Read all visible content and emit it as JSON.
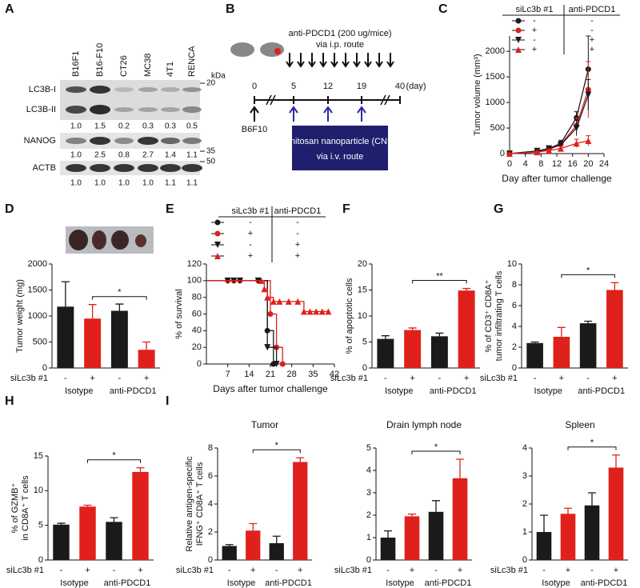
{
  "blot": {
    "panel": "A",
    "lanes": [
      "B16F1",
      "B16-F10",
      "CT26",
      "MC38",
      "4T1",
      "RENCA"
    ],
    "unit": "kDa",
    "markers": [
      20,
      35,
      50
    ],
    "rows": [
      {
        "labels": [
          "LC3B-I",
          "LC3B-II"
        ],
        "quant": [
          "1.0",
          "1.5",
          "0.2",
          "0.3",
          "0.3",
          "0.5"
        ]
      },
      {
        "labels": [
          "NANOG"
        ],
        "quant": [
          "1.0",
          "2.5",
          "0.8",
          "2.7",
          "1.4",
          "1.1"
        ]
      },
      {
        "labels": [
          "ACTB"
        ],
        "quant": [
          "1.0",
          "1.0",
          "1.0",
          "1.0",
          "1.1",
          "1.1"
        ]
      }
    ]
  },
  "schematic": {
    "panel": "B",
    "treatment": "anti-PDCD1 (200 ug/mice)",
    "treatment_route": "via i.p. route",
    "days": [
      "0",
      "5",
      "12",
      "19",
      "40"
    ],
    "day_unit": "(day)",
    "cell_line": "B6F10",
    "nanoparticle": "Chitosan nanoparticle (CNP)",
    "nanoparticle_route": "via i.v. route"
  },
  "chart_data": [
    {
      "type": "line",
      "panel": "C",
      "xlabel": "Day after tumor challenge",
      "ylabel": [
        "Tumor volume (mm³)"
      ],
      "xlim": [
        0,
        24
      ],
      "xticks": [
        0,
        4,
        8,
        12,
        16,
        20,
        24
      ],
      "ylim": [
        0,
        2300
      ],
      "yticks": [
        0,
        500,
        1000,
        1500,
        2000
      ],
      "legend": {
        "columns": [
          "siLc3b #1",
          "anti-PDCD1"
        ],
        "rows": [
          [
            "-",
            "-"
          ],
          [
            "+",
            "-"
          ],
          [
            "-",
            "+"
          ],
          [
            "+",
            "+"
          ]
        ]
      },
      "series": [
        {
          "color": "#1a1a1a",
          "marker": "circle",
          "x": [
            0,
            7,
            10,
            13,
            17,
            20
          ],
          "values": [
            0,
            50,
            100,
            200,
            700,
            1650
          ],
          "errors": [
            0,
            20,
            30,
            60,
            120,
            650
          ]
        },
        {
          "color": "#e0201b",
          "marker": "circle",
          "x": [
            0,
            7,
            10,
            13,
            17,
            20
          ],
          "values": [
            0,
            40,
            80,
            180,
            550,
            1250
          ],
          "errors": [
            0,
            20,
            30,
            50,
            150,
            550
          ]
        },
        {
          "color": "#1a1a1a",
          "marker": "triangle-down",
          "x": [
            0,
            7,
            10,
            13,
            17,
            20
          ],
          "values": [
            0,
            50,
            100,
            170,
            500,
            1150
          ],
          "errors": [
            0,
            20,
            30,
            60,
            150,
            300
          ]
        },
        {
          "color": "#e0201b",
          "marker": "triangle-up",
          "x": [
            0,
            7,
            10,
            13,
            17,
            20
          ],
          "values": [
            0,
            30,
            60,
            100,
            200,
            250
          ],
          "errors": [
            0,
            10,
            20,
            40,
            80,
            100
          ]
        }
      ]
    },
    {
      "type": "bar",
      "panel": "D",
      "ylabel": [
        "Tumor weight (mg)"
      ],
      "values": [
        1180,
        950,
        1100,
        350
      ],
      "errors": [
        480,
        270,
        130,
        150
      ],
      "colors": [
        "#1a1a1a",
        "#e0201b",
        "#1a1a1a",
        "#e0201b"
      ],
      "ylim": [
        0,
        2000
      ],
      "yticks": [
        0,
        500,
        1000,
        1500,
        2000
      ],
      "sign_label": "siLc3b #1",
      "signs": [
        "-",
        "+",
        "-",
        "+"
      ],
      "groups": [
        "Isotype",
        "anti-PDCD1"
      ],
      "significance": "*"
    },
    {
      "type": "step",
      "panel": "E",
      "xlabel": "Days after tumor challenge",
      "ylabel": [
        "% of survival"
      ],
      "xlim": [
        0,
        42
      ],
      "xticks": [
        7,
        14,
        21,
        28,
        35,
        42
      ],
      "ylim": [
        0,
        120
      ],
      "yticks": [
        0,
        20,
        40,
        60,
        80,
        100,
        120
      ],
      "legend": {
        "columns": [
          "siLc3b #1",
          "anti-PDCD1"
        ],
        "rows": [
          [
            "-",
            "-"
          ],
          [
            "+",
            "-"
          ],
          [
            "-",
            "+"
          ],
          [
            "+",
            "+"
          ]
        ]
      },
      "series": [
        {
          "color": "#1a1a1a",
          "marker": "circle",
          "x": [
            0,
            7,
            9,
            11,
            17,
            20,
            22
          ],
          "values": [
            100,
            100,
            100,
            100,
            100,
            40,
            0
          ]
        },
        {
          "color": "#e0201b",
          "marker": "circle",
          "x": [
            0,
            7,
            9,
            11,
            17,
            21,
            23,
            25
          ],
          "values": [
            100,
            100,
            100,
            100,
            100,
            60,
            20,
            0
          ]
        },
        {
          "color": "#1a1a1a",
          "marker": "triangle-down",
          "x": [
            0,
            7,
            9,
            11,
            17,
            20,
            23
          ],
          "values": [
            100,
            100,
            100,
            100,
            100,
            20,
            0
          ]
        },
        {
          "color": "#e0201b",
          "marker": "triangle-up",
          "x": [
            0,
            18,
            19,
            20,
            22,
            24,
            27,
            30,
            32,
            34,
            36,
            38,
            40
          ],
          "values": [
            100,
            100,
            90,
            80,
            75,
            75,
            75,
            75,
            63,
            63,
            63,
            63,
            63
          ]
        }
      ]
    },
    {
      "type": "bar",
      "panel": "F",
      "ylabel": [
        "% of apoptotic cells"
      ],
      "values": [
        5.6,
        7.3,
        6.1,
        14.9
      ],
      "errors": [
        0.6,
        0.4,
        0.6,
        0.4
      ],
      "colors": [
        "#1a1a1a",
        "#e0201b",
        "#1a1a1a",
        "#e0201b"
      ],
      "ylim": [
        0,
        20
      ],
      "yticks": [
        0,
        5,
        10,
        15,
        20
      ],
      "sign_label": "siLc3b #1",
      "signs": [
        "-",
        "+",
        "-",
        "+"
      ],
      "groups": [
        "Isotype",
        "anti-PDCD1"
      ],
      "significance": "**"
    },
    {
      "type": "bar",
      "panel": "G",
      "ylabel": [
        "% of CD3⁺ CD8A⁺",
        "tumor infiltrating T cells"
      ],
      "values": [
        2.4,
        3.0,
        4.3,
        7.5
      ],
      "errors": [
        0.1,
        0.9,
        0.2,
        0.7
      ],
      "colors": [
        "#1a1a1a",
        "#e0201b",
        "#1a1a1a",
        "#e0201b"
      ],
      "ylim": [
        0,
        10
      ],
      "yticks": [
        0,
        2,
        4,
        6,
        8,
        10
      ],
      "sign_label": "siLc3b #1",
      "signs": [
        "-",
        "+",
        "-",
        "+"
      ],
      "groups": [
        "Isotype",
        "anti-PDCD1"
      ],
      "significance": "*"
    },
    {
      "type": "bar",
      "panel": "H",
      "ylabel": [
        "% of GZMB⁺",
        "in CD8A⁺ T cells"
      ],
      "values": [
        5.1,
        7.7,
        5.5,
        12.7
      ],
      "errors": [
        0.2,
        0.2,
        0.6,
        0.6
      ],
      "colors": [
        "#1a1a1a",
        "#e0201b",
        "#1a1a1a",
        "#e0201b"
      ],
      "ylim": [
        0,
        15
      ],
      "yticks": [
        0,
        5,
        10,
        15
      ],
      "sign_label": "siLc3b #1",
      "signs": [
        "-",
        "+",
        "-",
        "+"
      ],
      "groups": [
        "Isotype",
        "anti-PDCD1"
      ],
      "significance": "*"
    },
    {
      "type": "bar",
      "panel": "I",
      "title": "Tumor",
      "ylabel": [
        "Relative antigen-specific",
        "IFNG⁺ CD8A⁺ T cells"
      ],
      "values": [
        1.0,
        2.1,
        1.2,
        7.0
      ],
      "errors": [
        0.1,
        0.5,
        0.5,
        0.3
      ],
      "colors": [
        "#1a1a1a",
        "#e0201b",
        "#1a1a1a",
        "#e0201b"
      ],
      "ylim": [
        0,
        8
      ],
      "yticks": [
        0,
        2,
        4,
        6,
        8
      ],
      "sign_label": "siLc3b #1",
      "signs": [
        "-",
        "+",
        "-",
        "+"
      ],
      "groups": [
        "Isotype",
        "anti-PDCD1"
      ],
      "significance": "*"
    },
    {
      "type": "bar",
      "title": "Drain lymph node",
      "values": [
        1.0,
        1.95,
        2.15,
        3.65
      ],
      "errors": [
        0.3,
        0.1,
        0.5,
        0.85
      ],
      "colors": [
        "#1a1a1a",
        "#e0201b",
        "#1a1a1a",
        "#e0201b"
      ],
      "ylim": [
        0,
        5
      ],
      "yticks": [
        0,
        1,
        2,
        3,
        4,
        5
      ],
      "sign_label": "siLc3b #1",
      "signs": [
        "-",
        "+",
        "-",
        "+"
      ],
      "groups": [
        "Isotype",
        "anti-PDCD1"
      ],
      "significance": "*"
    },
    {
      "type": "bar",
      "title": "Spleen",
      "values": [
        1.0,
        1.65,
        1.95,
        3.3
      ],
      "errors": [
        0.6,
        0.2,
        0.45,
        0.45
      ],
      "colors": [
        "#1a1a1a",
        "#e0201b",
        "#1a1a1a",
        "#e0201b"
      ],
      "ylim": [
        0,
        4
      ],
      "yticks": [
        0,
        1,
        2,
        3,
        4
      ],
      "sign_label": "siLc3b #1",
      "signs": [
        "-",
        "+",
        "-",
        "+"
      ],
      "groups": [
        "Isotype",
        "anti-PDCD1"
      ],
      "significance": "*"
    }
  ]
}
